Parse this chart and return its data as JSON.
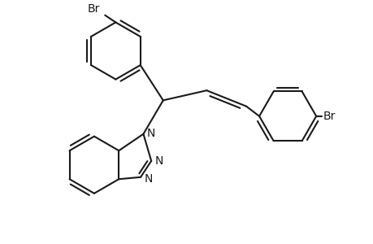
{
  "background_color": "#ffffff",
  "line_color": "#1a1a1a",
  "line_width": 1.5,
  "text_color": "#1a1a1a",
  "font_size": 10,
  "figsize": [
    4.6,
    3.0
  ],
  "dpi": 100,
  "xlim": [
    0,
    9.2
  ],
  "ylim": [
    0,
    6.0
  ]
}
